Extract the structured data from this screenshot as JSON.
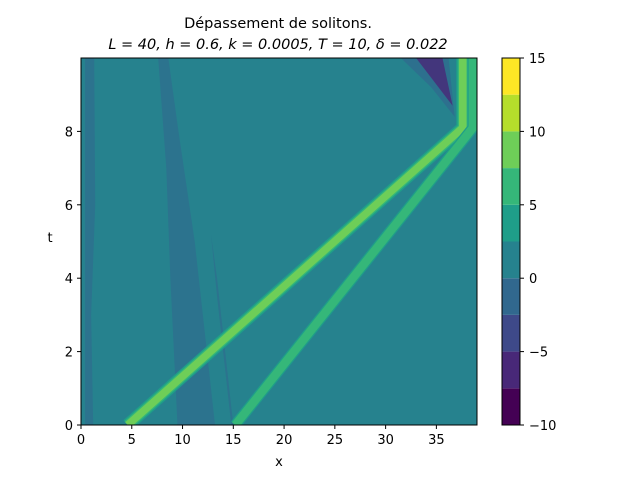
{
  "chart_data": {
    "type": "heatmap",
    "subtype": "filled-contour",
    "title_line1": "Dépassement de solitons.",
    "title_line2": "L = 40, h = 0.6, k = 0.0005, T = 10, δ = 0.022",
    "xlabel": "x",
    "ylabel": "t",
    "xlim": [
      0,
      39
    ],
    "ylim": [
      0,
      10
    ],
    "x_ticks": [
      0,
      5,
      10,
      15,
      20,
      25,
      30,
      35
    ],
    "y_ticks": [
      0,
      2,
      4,
      6,
      8
    ],
    "colorbar": {
      "levels": [
        -10,
        -7.5,
        -5,
        -2.5,
        0,
        2.5,
        5,
        7.5,
        10,
        12.5,
        15
      ],
      "colors": [
        "#440154",
        "#482878",
        "#3e4989",
        "#31688e",
        "#26828e",
        "#1f9e89",
        "#35b779",
        "#6ece58",
        "#b5de2b",
        "#fde725"
      ],
      "ticks": [
        -10,
        -5,
        0,
        5,
        10,
        15
      ]
    },
    "background_color": "#26828e",
    "solitons": [
      {
        "x_start": 4.6,
        "t_start": 0,
        "x_end": 37.6,
        "t_end": 8.1,
        "x_after": 37.6,
        "t_after": 10,
        "peak_level": 10
      },
      {
        "x_start": 15.2,
        "t_start": 0,
        "x_end": 38.6,
        "t_end": 8.1,
        "x_after": 38.6,
        "t_after": 10,
        "peak_level": 7.5
      }
    ]
  }
}
